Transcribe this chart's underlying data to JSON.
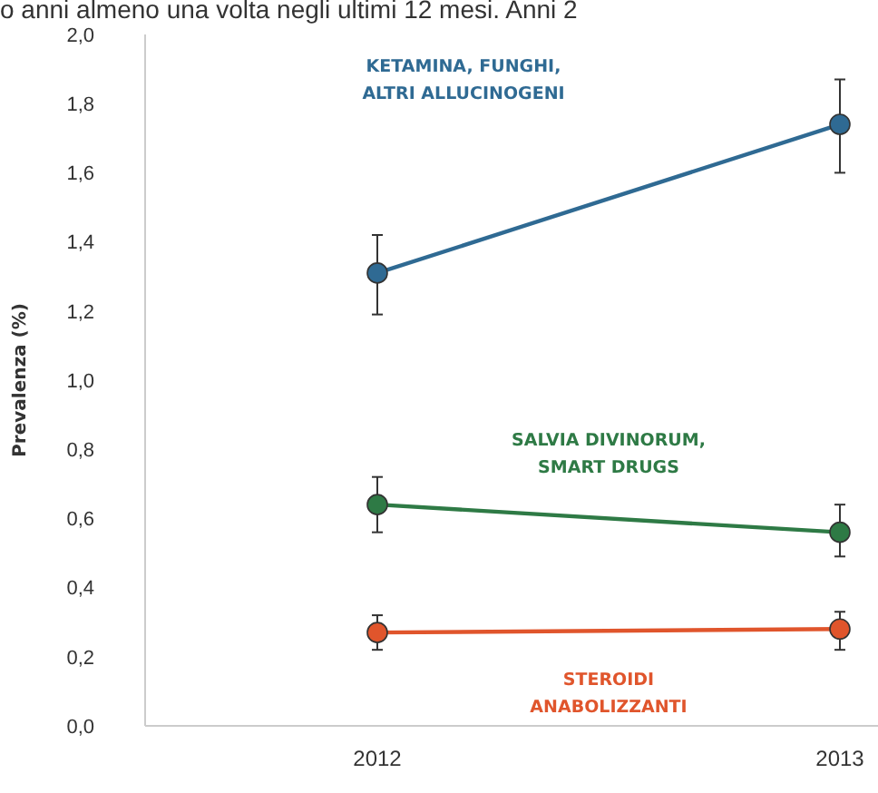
{
  "chart_data": {
    "type": "line",
    "title": "o anni almeno una volta negli ultimi 12 mesi. Anni 2",
    "ylabel": "Prevalenza (%)",
    "categories": [
      "2012",
      "2013"
    ],
    "ylim": [
      0,
      2
    ],
    "yticks": [
      {
        "value": 0,
        "label": "0,0"
      },
      {
        "value": 0.2,
        "label": "0,2"
      },
      {
        "value": 0.4,
        "label": "0,4"
      },
      {
        "value": 0.6,
        "label": "0,6"
      },
      {
        "value": 0.8,
        "label": "0,8"
      },
      {
        "value": 1,
        "label": "1,0"
      },
      {
        "value": 1.2,
        "label": "1,2"
      },
      {
        "value": 1.4,
        "label": "1,4"
      },
      {
        "value": 1.6,
        "label": "1,6"
      },
      {
        "value": 1.8,
        "label": "1,8"
      },
      {
        "value": 2,
        "label": "2,0"
      }
    ],
    "grid": false,
    "marker": "circle",
    "line_style": "solid",
    "series": [
      {
        "name": "KETAMINA, FUNGHI, ALTRI ALLUCINOGENI",
        "color": "#2f6a93",
        "values": [
          1.31,
          1.74
        ],
        "errors": [
          [
            1.19,
            1.42
          ],
          [
            1.6,
            1.87
          ]
        ]
      },
      {
        "name": "SALVIA DIVINORUM, SMART DRUGS",
        "color": "#2e7a45",
        "values": [
          0.64,
          0.56
        ],
        "errors": [
          [
            0.56,
            0.72
          ],
          [
            0.49,
            0.64
          ]
        ]
      },
      {
        "name": "STEROIDI ANABOLIZZANTI",
        "color": "#e0552c",
        "values": [
          0.27,
          0.28
        ],
        "errors": [
          [
            0.22,
            0.32
          ],
          [
            0.22,
            0.33
          ]
        ]
      }
    ]
  }
}
